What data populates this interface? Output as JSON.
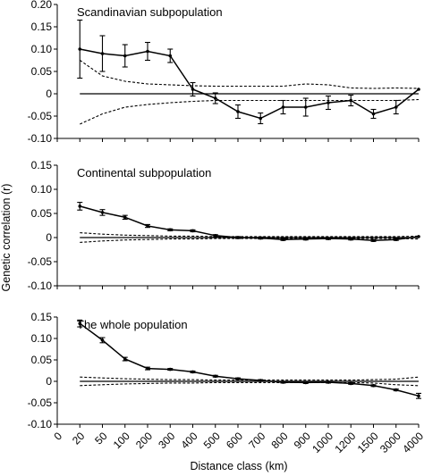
{
  "chart_data": {
    "type": "line",
    "xlabel": "Distance class (km)",
    "ylabel": "Genetic correlation (r)",
    "x_ticks": [
      "0",
      "20",
      "50",
      "100",
      "200",
      "300",
      "400",
      "500",
      "600",
      "700",
      "800",
      "900",
      "1000",
      "1200",
      "1500",
      "3000",
      "4000"
    ],
    "panels": [
      {
        "title": "Scandinavian subpopulation",
        "ylim": [
          -0.1,
          0.2
        ],
        "y_ticks": [
          "0.20",
          "0.15",
          "0.10",
          "0.05",
          "0",
          "-0.05",
          "-0.10"
        ],
        "y_tick_values": [
          0.2,
          0.15,
          0.1,
          0.05,
          0,
          -0.05,
          -0.1
        ],
        "x": [
          "20",
          "50",
          "100",
          "200",
          "300",
          "400",
          "500",
          "600",
          "700",
          "800",
          "900",
          "1000",
          "1200",
          "1500",
          "3000",
          "4000"
        ],
        "r": [
          0.1,
          0.09,
          0.085,
          0.095,
          0.085,
          0.01,
          -0.01,
          -0.04,
          -0.055,
          -0.03,
          -0.03,
          -0.02,
          -0.015,
          -0.045,
          -0.03,
          0.01
        ],
        "error": [
          0.065,
          0.04,
          0.025,
          0.02,
          0.015,
          0.015,
          0.012,
          0.015,
          0.012,
          0.015,
          0.02,
          0.015,
          0.012,
          0.01,
          0.015,
          null
        ],
        "upper_ci": [
          0.075,
          0.04,
          0.028,
          0.022,
          0.02,
          0.018,
          0.017,
          0.017,
          0.017,
          0.017,
          0.022,
          0.02,
          0.013,
          0.012,
          0.013,
          0.012
        ],
        "lower_ci": [
          -0.068,
          -0.045,
          -0.03,
          -0.024,
          -0.02,
          -0.017,
          -0.015,
          -0.015,
          -0.015,
          -0.015,
          -0.015,
          -0.015,
          -0.015,
          -0.015,
          -0.015,
          -0.013
        ]
      },
      {
        "title": "Continental subpopulation",
        "ylim": [
          -0.1,
          0.15
        ],
        "y_ticks": [
          "0.15",
          "0.10",
          "0.05",
          "0",
          "-0.05",
          "-0.10"
        ],
        "y_tick_values": [
          0.15,
          0.1,
          0.05,
          0,
          -0.05,
          -0.1
        ],
        "x": [
          "20",
          "50",
          "100",
          "200",
          "300",
          "400",
          "500",
          "600",
          "700",
          "800",
          "900",
          "1000",
          "1200",
          "1500",
          "3000",
          "4000"
        ],
        "r": [
          0.065,
          0.052,
          0.042,
          0.024,
          0.016,
          0.014,
          0.004,
          0.0,
          -0.001,
          -0.004,
          -0.003,
          -0.002,
          -0.003,
          -0.006,
          -0.004,
          0.002
        ],
        "error": [
          0.008,
          0.006,
          0.004,
          0.003,
          0.002,
          0.002,
          0.002,
          0.002,
          0.002,
          0.002,
          0.002,
          0.002,
          0.002,
          0.002,
          0.002,
          null
        ],
        "upper_ci": [
          0.01,
          0.007,
          0.005,
          0.004,
          0.003,
          0.003,
          0.002,
          0.002,
          0.002,
          0.002,
          0.002,
          0.002,
          0.002,
          0.002,
          0.002,
          0.003
        ],
        "lower_ci": [
          -0.01,
          -0.007,
          -0.005,
          -0.004,
          -0.003,
          -0.003,
          -0.002,
          -0.002,
          -0.002,
          -0.002,
          -0.002,
          -0.002,
          -0.002,
          -0.002,
          -0.002,
          -0.003
        ]
      },
      {
        "title": "The whole population",
        "ylim": [
          -0.1,
          0.15
        ],
        "y_ticks": [
          "0.15",
          "0.10",
          "0.05",
          "0",
          "-0.05",
          "-0.10"
        ],
        "y_tick_values": [
          0.15,
          0.1,
          0.05,
          0,
          -0.05,
          -0.1
        ],
        "x": [
          "20",
          "50",
          "100",
          "200",
          "300",
          "400",
          "500",
          "600",
          "700",
          "800",
          "900",
          "1000",
          "1200",
          "1500",
          "3000",
          "4000"
        ],
        "r": [
          0.135,
          0.096,
          0.052,
          0.03,
          0.028,
          0.022,
          0.012,
          0.006,
          0.002,
          -0.002,
          -0.003,
          -0.002,
          -0.005,
          -0.01,
          -0.02,
          -0.034
        ],
        "error": [
          0.008,
          0.006,
          0.004,
          0.003,
          0.002,
          0.002,
          0.002,
          0.002,
          0.002,
          0.002,
          0.002,
          0.002,
          0.002,
          0.002,
          0.002,
          0.006
        ],
        "upper_ci": [
          0.01,
          0.008,
          0.006,
          0.005,
          0.004,
          0.004,
          0.003,
          0.003,
          0.003,
          0.003,
          0.003,
          0.003,
          0.003,
          0.004,
          0.005,
          0.01
        ],
        "lower_ci": [
          -0.01,
          -0.008,
          -0.006,
          -0.005,
          -0.004,
          -0.004,
          -0.003,
          -0.003,
          -0.003,
          -0.003,
          -0.003,
          -0.003,
          -0.003,
          -0.004,
          -0.008,
          -0.01
        ]
      }
    ]
  }
}
